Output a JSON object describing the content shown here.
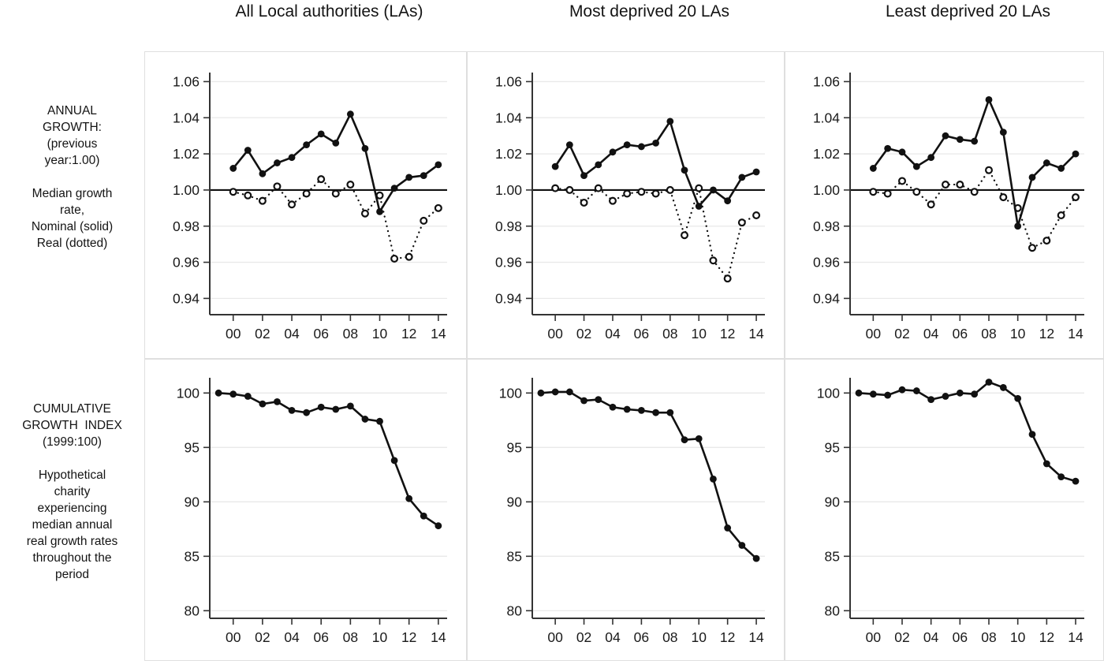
{
  "page": {
    "column_titles": [
      "All Local authorities (LAs)",
      "Most deprived 20 LAs",
      "Least deprived 20 LAs"
    ],
    "row_labels": [
      "ANNUAL\nGROWTH:\n(previous\nyear:1.00)\n\nMedian growth\nrate,\nNominal (solid)\nReal (dotted)",
      "CUMULATIVE\nGROWTH  INDEX\n(1999:100)\n\nHypothetical\ncharity\nexperiencing\nmedian annual\nreal growth rates\nthroughout the\nperiod"
    ],
    "colors": {
      "text": "#1a1a1a",
      "axis": "#333333",
      "grid": "#e9e9e9",
      "panel_border": "#dfdfdf",
      "series": "#111111",
      "ref_line": "#111111"
    }
  },
  "chart_data": [
    {
      "id": "annual-all-las",
      "type": "line",
      "title": "Annual growth (previous year:1.00) — All Local authorities (LAs)",
      "row": 0,
      "col": 0,
      "x": [
        2000,
        2001,
        2002,
        2003,
        2004,
        2005,
        2006,
        2007,
        2008,
        2009,
        2010,
        2011,
        2012,
        2013,
        2014
      ],
      "xticks": [
        2000,
        2002,
        2004,
        2006,
        2008,
        2010,
        2012,
        2014
      ],
      "xtick_labels": [
        "00",
        "02",
        "04",
        "06",
        "08",
        "10",
        "12",
        "14"
      ],
      "xlim": [
        1998.4,
        2014.6
      ],
      "yticks": [
        0.94,
        0.96,
        0.98,
        1.0,
        1.02,
        1.04,
        1.06
      ],
      "ytick_labels": [
        "0.94",
        "0.96",
        "0.98",
        "1.00",
        "1.02",
        "1.04",
        "1.06"
      ],
      "ylim": [
        0.931,
        1.065
      ],
      "ref_line": 1.0,
      "grid": true,
      "series": [
        {
          "name": "Nominal (solid)",
          "line": "solid",
          "marker": "filled",
          "values": [
            1.012,
            1.022,
            1.009,
            1.015,
            1.018,
            1.025,
            1.031,
            1.026,
            1.042,
            1.023,
            0.988,
            1.001,
            1.007,
            1.008,
            1.014
          ]
        },
        {
          "name": "Real (dotted)",
          "line": "dotted",
          "marker": "open",
          "values": [
            0.999,
            0.997,
            0.994,
            1.002,
            0.992,
            0.998,
            1.006,
            0.998,
            1.003,
            0.987,
            0.997,
            0.962,
            0.963,
            0.983,
            0.99
          ]
        }
      ]
    },
    {
      "id": "annual-most-deprived",
      "type": "line",
      "title": "Annual growth (previous year:1.00) — Most deprived 20 LAs",
      "row": 0,
      "col": 1,
      "x": [
        2000,
        2001,
        2002,
        2003,
        2004,
        2005,
        2006,
        2007,
        2008,
        2009,
        2010,
        2011,
        2012,
        2013,
        2014
      ],
      "xticks": [
        2000,
        2002,
        2004,
        2006,
        2008,
        2010,
        2012,
        2014
      ],
      "xtick_labels": [
        "00",
        "02",
        "04",
        "06",
        "08",
        "10",
        "12",
        "14"
      ],
      "xlim": [
        1998.4,
        2014.6
      ],
      "yticks": [
        0.94,
        0.96,
        0.98,
        1.0,
        1.02,
        1.04,
        1.06
      ],
      "ytick_labels": [
        "0.94",
        "0.96",
        "0.98",
        "1.00",
        "1.02",
        "1.04",
        "1.06"
      ],
      "ylim": [
        0.931,
        1.065
      ],
      "ref_line": 1.0,
      "grid": true,
      "series": [
        {
          "name": "Nominal (solid)",
          "line": "solid",
          "marker": "filled",
          "values": [
            1.013,
            1.025,
            1.008,
            1.014,
            1.021,
            1.025,
            1.024,
            1.026,
            1.038,
            1.011,
            0.991,
            1.0,
            0.994,
            1.007,
            1.01
          ]
        },
        {
          "name": "Real (dotted)",
          "line": "dotted",
          "marker": "open",
          "values": [
            1.001,
            1.0,
            0.993,
            1.001,
            0.994,
            0.998,
            0.999,
            0.998,
            1.0,
            0.975,
            1.001,
            0.961,
            0.951,
            0.982,
            0.986
          ]
        }
      ]
    },
    {
      "id": "annual-least-deprived",
      "type": "line",
      "title": "Annual growth (previous year:1.00) — Least deprived 20 LAs",
      "row": 0,
      "col": 2,
      "x": [
        2000,
        2001,
        2002,
        2003,
        2004,
        2005,
        2006,
        2007,
        2008,
        2009,
        2010,
        2011,
        2012,
        2013,
        2014
      ],
      "xticks": [
        2000,
        2002,
        2004,
        2006,
        2008,
        2010,
        2012,
        2014
      ],
      "xtick_labels": [
        "00",
        "02",
        "04",
        "06",
        "08",
        "10",
        "12",
        "14"
      ],
      "xlim": [
        1998.4,
        2014.6
      ],
      "yticks": [
        0.94,
        0.96,
        0.98,
        1.0,
        1.02,
        1.04,
        1.06
      ],
      "ytick_labels": [
        "0.94",
        "0.96",
        "0.98",
        "1.00",
        "1.02",
        "1.04",
        "1.06"
      ],
      "ylim": [
        0.931,
        1.065
      ],
      "ref_line": 1.0,
      "grid": true,
      "series": [
        {
          "name": "Nominal (solid)",
          "line": "solid",
          "marker": "filled",
          "values": [
            1.012,
            1.023,
            1.021,
            1.013,
            1.018,
            1.03,
            1.028,
            1.027,
            1.05,
            1.032,
            0.98,
            1.007,
            1.015,
            1.012,
            1.02
          ]
        },
        {
          "name": "Real (dotted)",
          "line": "dotted",
          "marker": "open",
          "values": [
            0.999,
            0.998,
            1.005,
            0.999,
            0.992,
            1.003,
            1.003,
            0.999,
            1.011,
            0.996,
            0.99,
            0.968,
            0.972,
            0.986,
            0.996
          ]
        }
      ]
    },
    {
      "id": "cumulative-all-las",
      "type": "line",
      "title": "Cumulative growth index (1999:100) — All Local authorities (LAs)",
      "row": 1,
      "col": 0,
      "x": [
        1999,
        2000,
        2001,
        2002,
        2003,
        2004,
        2005,
        2006,
        2007,
        2008,
        2009,
        2010,
        2011,
        2012,
        2013,
        2014
      ],
      "xticks": [
        2000,
        2002,
        2004,
        2006,
        2008,
        2010,
        2012,
        2014
      ],
      "xtick_labels": [
        "00",
        "02",
        "04",
        "06",
        "08",
        "10",
        "12",
        "14"
      ],
      "xlim": [
        1998.4,
        2014.6
      ],
      "yticks": [
        80,
        85,
        90,
        95,
        100
      ],
      "ytick_labels": [
        "80",
        "85",
        "90",
        "95",
        "100"
      ],
      "ylim": [
        79.3,
        101.4
      ],
      "ref_line": null,
      "grid": true,
      "series": [
        {
          "name": "Cumulative real growth index",
          "line": "solid",
          "marker": "filled",
          "values": [
            100.0,
            99.9,
            99.7,
            99.0,
            99.2,
            98.4,
            98.2,
            98.7,
            98.5,
            98.8,
            97.6,
            97.4,
            93.8,
            90.3,
            88.7,
            87.8
          ]
        }
      ]
    },
    {
      "id": "cumulative-most-deprived",
      "type": "line",
      "title": "Cumulative growth index (1999:100) — Most deprived 20 LAs",
      "row": 1,
      "col": 1,
      "x": [
        1999,
        2000,
        2001,
        2002,
        2003,
        2004,
        2005,
        2006,
        2007,
        2008,
        2009,
        2010,
        2011,
        2012,
        2013,
        2014
      ],
      "xticks": [
        2000,
        2002,
        2004,
        2006,
        2008,
        2010,
        2012,
        2014
      ],
      "xtick_labels": [
        "00",
        "02",
        "04",
        "06",
        "08",
        "10",
        "12",
        "14"
      ],
      "xlim": [
        1998.4,
        2014.6
      ],
      "yticks": [
        80,
        85,
        90,
        95,
        100
      ],
      "ytick_labels": [
        "80",
        "85",
        "90",
        "95",
        "100"
      ],
      "ylim": [
        79.3,
        101.4
      ],
      "ref_line": null,
      "grid": true,
      "series": [
        {
          "name": "Cumulative real growth index",
          "line": "solid",
          "marker": "filled",
          "values": [
            100.0,
            100.1,
            100.1,
            99.3,
            99.4,
            98.7,
            98.5,
            98.4,
            98.2,
            98.2,
            95.7,
            95.8,
            92.1,
            87.6,
            86.0,
            84.8
          ]
        }
      ]
    },
    {
      "id": "cumulative-least-deprived",
      "type": "line",
      "title": "Cumulative growth index (1999:100) — Least deprived 20 LAs",
      "row": 1,
      "col": 2,
      "x": [
        1999,
        2000,
        2001,
        2002,
        2003,
        2004,
        2005,
        2006,
        2007,
        2008,
        2009,
        2010,
        2011,
        2012,
        2013,
        2014
      ],
      "xticks": [
        2000,
        2002,
        2004,
        2006,
        2008,
        2010,
        2012,
        2014
      ],
      "xtick_labels": [
        "00",
        "02",
        "04",
        "06",
        "08",
        "10",
        "12",
        "14"
      ],
      "xlim": [
        1998.4,
        2014.6
      ],
      "yticks": [
        80,
        85,
        90,
        95,
        100
      ],
      "ytick_labels": [
        "80",
        "85",
        "90",
        "95",
        "100"
      ],
      "ylim": [
        79.3,
        101.4
      ],
      "ref_line": null,
      "grid": true,
      "series": [
        {
          "name": "Cumulative real growth index",
          "line": "solid",
          "marker": "filled",
          "values": [
            100.0,
            99.9,
            99.8,
            100.3,
            100.2,
            99.4,
            99.7,
            100.0,
            99.9,
            101.0,
            100.5,
            99.5,
            96.2,
            93.5,
            92.3,
            91.9
          ]
        }
      ]
    }
  ]
}
